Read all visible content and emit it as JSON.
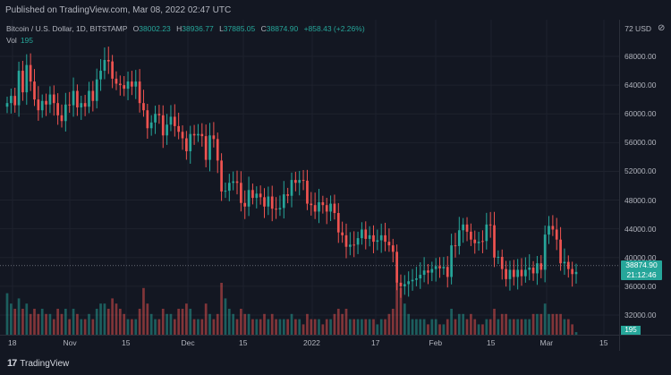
{
  "header": {
    "published": "Published on TradingView.com, Mar 08, 2022 02:47 UTC"
  },
  "legend": {
    "symbol": "Bitcoin / U.S. Dollar, 1D, BITSTAMP",
    "o_key": "O",
    "o_val": "38002.23",
    "h_key": "H",
    "h_val": "38936.77",
    "l_key": "L",
    "l_val": "37885.05",
    "c_key": "C",
    "c_val": "38874.90",
    "change": "+858.43 (+2.26%)",
    "vol_key": "Vol",
    "vol_val": "195"
  },
  "price_axis": {
    "unit_label": "72 USD",
    "ticks": [
      "68000.00",
      "64000.00",
      "60000.00",
      "56000.00",
      "52000.00",
      "48000.00",
      "44000.00",
      "40000.00",
      "36000.00",
      "32000.00"
    ],
    "current_price": "38874.90",
    "countdown": "21:12:46",
    "volume_label": "195"
  },
  "time_axis": {
    "ticks": [
      "18",
      "Nov",
      "15",
      "Dec",
      "15",
      "2022",
      "17",
      "Feb",
      "15",
      "Mar",
      "15"
    ]
  },
  "footer": {
    "logo_text": "TradingView",
    "logo_mark": "17"
  },
  "colors": {
    "up": "#26a69a",
    "down": "#ef5350",
    "background": "#131722",
    "grid": "#2a2e39"
  },
  "chart_data": {
    "type": "candlestick",
    "title": "Bitcoin / U.S. Dollar, 1D, BITSTAMP",
    "ylim": [
      30000,
      72000
    ],
    "x_ticks": [
      "18",
      "Nov",
      "15",
      "Dec",
      "15",
      "2022",
      "17",
      "Feb",
      "15",
      "Mar",
      "15"
    ],
    "candles": [
      {
        "c": 61500,
        "d": "up",
        "v": 0.8
      },
      {
        "c": 62500,
        "d": "up",
        "v": 0.6
      },
      {
        "c": 61200,
        "d": "down",
        "v": 0.5
      },
      {
        "c": 66000,
        "d": "up",
        "v": 0.7
      },
      {
        "c": 63000,
        "d": "down",
        "v": 0.5
      },
      {
        "c": 66800,
        "d": "up",
        "v": 0.6
      },
      {
        "c": 64500,
        "d": "down",
        "v": 0.4
      },
      {
        "c": 62000,
        "d": "down",
        "v": 0.5
      },
      {
        "c": 60500,
        "d": "down",
        "v": 0.4
      },
      {
        "c": 61800,
        "d": "up",
        "v": 0.5
      },
      {
        "c": 61300,
        "d": "down",
        "v": 0.4
      },
      {
        "c": 62700,
        "d": "up",
        "v": 0.4
      },
      {
        "c": 61500,
        "d": "down",
        "v": 0.3
      },
      {
        "c": 59800,
        "d": "down",
        "v": 0.5
      },
      {
        "c": 59000,
        "d": "down",
        "v": 0.4
      },
      {
        "c": 61300,
        "d": "up",
        "v": 0.5
      },
      {
        "c": 61200,
        "d": "down",
        "v": 0.3
      },
      {
        "c": 63200,
        "d": "up",
        "v": 0.5
      },
      {
        "c": 60900,
        "d": "down",
        "v": 0.4
      },
      {
        "c": 61500,
        "d": "up",
        "v": 0.3
      },
      {
        "c": 61000,
        "d": "down",
        "v": 0.3
      },
      {
        "c": 63200,
        "d": "up",
        "v": 0.4
      },
      {
        "c": 61800,
        "d": "down",
        "v": 0.3
      },
      {
        "c": 64800,
        "d": "up",
        "v": 0.5
      },
      {
        "c": 66000,
        "d": "up",
        "v": 0.6
      },
      {
        "c": 67500,
        "d": "up",
        "v": 0.6
      },
      {
        "c": 67300,
        "d": "down",
        "v": 0.5
      },
      {
        "c": 64900,
        "d": "down",
        "v": 0.7
      },
      {
        "c": 64200,
        "d": "down",
        "v": 0.6
      },
      {
        "c": 64000,
        "d": "down",
        "v": 0.5
      },
      {
        "c": 63500,
        "d": "down",
        "v": 0.4
      },
      {
        "c": 64500,
        "d": "up",
        "v": 0.3
      },
      {
        "c": 63800,
        "d": "down",
        "v": 0.3
      },
      {
        "c": 64500,
        "d": "up",
        "v": 0.3
      },
      {
        "c": 61500,
        "d": "down",
        "v": 0.5
      },
      {
        "c": 60500,
        "d": "down",
        "v": 0.9
      },
      {
        "c": 58000,
        "d": "down",
        "v": 0.6
      },
      {
        "c": 58800,
        "d": "up",
        "v": 0.4
      },
      {
        "c": 60000,
        "d": "up",
        "v": 0.3
      },
      {
        "c": 59800,
        "d": "down",
        "v": 0.3
      },
      {
        "c": 57000,
        "d": "down",
        "v": 0.5
      },
      {
        "c": 58500,
        "d": "up",
        "v": 0.4
      },
      {
        "c": 59600,
        "d": "up",
        "v": 0.4
      },
      {
        "c": 58300,
        "d": "down",
        "v": 0.3
      },
      {
        "c": 57500,
        "d": "down",
        "v": 0.5
      },
      {
        "c": 56600,
        "d": "down",
        "v": 0.5
      },
      {
        "c": 54800,
        "d": "down",
        "v": 0.6
      },
      {
        "c": 57200,
        "d": "up",
        "v": 0.5
      },
      {
        "c": 57000,
        "d": "down",
        "v": 0.3
      },
      {
        "c": 57200,
        "d": "up",
        "v": 0.3
      },
      {
        "c": 56900,
        "d": "down",
        "v": 0.3
      },
      {
        "c": 53600,
        "d": "down",
        "v": 0.6
      },
      {
        "c": 57000,
        "d": "up",
        "v": 0.4
      },
      {
        "c": 56500,
        "d": "down",
        "v": 0.3
      },
      {
        "c": 53500,
        "d": "down",
        "v": 0.4
      },
      {
        "c": 49200,
        "d": "down",
        "v": 1.0
      },
      {
        "c": 49300,
        "d": "up",
        "v": 0.7
      },
      {
        "c": 50400,
        "d": "up",
        "v": 0.5
      },
      {
        "c": 50600,
        "d": "up",
        "v": 0.4
      },
      {
        "c": 50400,
        "d": "down",
        "v": 0.3
      },
      {
        "c": 47600,
        "d": "down",
        "v": 0.5
      },
      {
        "c": 47100,
        "d": "down",
        "v": 0.4
      },
      {
        "c": 49400,
        "d": "up",
        "v": 0.4
      },
      {
        "c": 48300,
        "d": "down",
        "v": 0.3
      },
      {
        "c": 48900,
        "d": "up",
        "v": 0.3
      },
      {
        "c": 48400,
        "d": "down",
        "v": 0.3
      },
      {
        "c": 47100,
        "d": "down",
        "v": 0.4
      },
      {
        "c": 48500,
        "d": "up",
        "v": 0.3
      },
      {
        "c": 46800,
        "d": "down",
        "v": 0.4
      },
      {
        "c": 46700,
        "d": "down",
        "v": 0.3
      },
      {
        "c": 46900,
        "d": "up",
        "v": 0.3
      },
      {
        "c": 48800,
        "d": "up",
        "v": 0.3
      },
      {
        "c": 48600,
        "d": "down",
        "v": 0.3
      },
      {
        "c": 50800,
        "d": "up",
        "v": 0.4
      },
      {
        "c": 50400,
        "d": "down",
        "v": 0.3
      },
      {
        "c": 50800,
        "d": "up",
        "v": 0.3
      },
      {
        "c": 50700,
        "d": "down",
        "v": 0.2
      },
      {
        "c": 47500,
        "d": "down",
        "v": 0.4
      },
      {
        "c": 47300,
        "d": "down",
        "v": 0.3
      },
      {
        "c": 46400,
        "d": "down",
        "v": 0.3
      },
      {
        "c": 47700,
        "d": "up",
        "v": 0.3
      },
      {
        "c": 47300,
        "d": "down",
        "v": 0.2
      },
      {
        "c": 46400,
        "d": "down",
        "v": 0.3
      },
      {
        "c": 47500,
        "d": "up",
        "v": 0.3
      },
      {
        "c": 46200,
        "d": "down",
        "v": 0.4
      },
      {
        "c": 43500,
        "d": "down",
        "v": 0.5
      },
      {
        "c": 43100,
        "d": "down",
        "v": 0.4
      },
      {
        "c": 41500,
        "d": "down",
        "v": 0.5
      },
      {
        "c": 41800,
        "d": "up",
        "v": 0.3
      },
      {
        "c": 41800,
        "d": "down",
        "v": 0.3
      },
      {
        "c": 42700,
        "d": "up",
        "v": 0.3
      },
      {
        "c": 43900,
        "d": "up",
        "v": 0.3
      },
      {
        "c": 42600,
        "d": "down",
        "v": 0.3
      },
      {
        "c": 43100,
        "d": "up",
        "v": 0.3
      },
      {
        "c": 42200,
        "d": "down",
        "v": 0.3
      },
      {
        "c": 42400,
        "d": "up",
        "v": 0.2
      },
      {
        "c": 43100,
        "d": "up",
        "v": 0.3
      },
      {
        "c": 42200,
        "d": "down",
        "v": 0.3
      },
      {
        "c": 41700,
        "d": "down",
        "v": 0.4
      },
      {
        "c": 40800,
        "d": "down",
        "v": 0.5
      },
      {
        "c": 36500,
        "d": "down",
        "v": 1.0
      },
      {
        "c": 36000,
        "d": "down",
        "v": 0.9
      },
      {
        "c": 36300,
        "d": "up",
        "v": 0.6
      },
      {
        "c": 36700,
        "d": "up",
        "v": 0.4
      },
      {
        "c": 36900,
        "d": "up",
        "v": 0.3
      },
      {
        "c": 37100,
        "d": "up",
        "v": 0.3
      },
      {
        "c": 37600,
        "d": "up",
        "v": 0.3
      },
      {
        "c": 38200,
        "d": "up",
        "v": 0.3
      },
      {
        "c": 37900,
        "d": "down",
        "v": 0.2
      },
      {
        "c": 38400,
        "d": "up",
        "v": 0.3
      },
      {
        "c": 38800,
        "d": "up",
        "v": 0.3
      },
      {
        "c": 38500,
        "d": "down",
        "v": 0.2
      },
      {
        "c": 38700,
        "d": "up",
        "v": 0.2
      },
      {
        "c": 37300,
        "d": "down",
        "v": 0.3
      },
      {
        "c": 41700,
        "d": "up",
        "v": 0.5
      },
      {
        "c": 41600,
        "d": "down",
        "v": 0.3
      },
      {
        "c": 43800,
        "d": "up",
        "v": 0.4
      },
      {
        "c": 44600,
        "d": "up",
        "v": 0.4
      },
      {
        "c": 43600,
        "d": "down",
        "v": 0.3
      },
      {
        "c": 42500,
        "d": "down",
        "v": 0.4
      },
      {
        "c": 42000,
        "d": "down",
        "v": 0.3
      },
      {
        "c": 42200,
        "d": "up",
        "v": 0.2
      },
      {
        "c": 42300,
        "d": "down",
        "v": 0.2
      },
      {
        "c": 44600,
        "d": "up",
        "v": 0.3
      },
      {
        "c": 44500,
        "d": "down",
        "v": 0.3
      },
      {
        "c": 40000,
        "d": "down",
        "v": 0.5
      },
      {
        "c": 40100,
        "d": "up",
        "v": 0.3
      },
      {
        "c": 38400,
        "d": "down",
        "v": 0.4
      },
      {
        "c": 37000,
        "d": "down",
        "v": 0.4
      },
      {
        "c": 38300,
        "d": "up",
        "v": 0.3
      },
      {
        "c": 37300,
        "d": "down",
        "v": 0.3
      },
      {
        "c": 38300,
        "d": "up",
        "v": 0.3
      },
      {
        "c": 37400,
        "d": "down",
        "v": 0.3
      },
      {
        "c": 38300,
        "d": "up",
        "v": 0.3
      },
      {
        "c": 38600,
        "d": "up",
        "v": 0.3
      },
      {
        "c": 37800,
        "d": "down",
        "v": 0.4
      },
      {
        "c": 39200,
        "d": "up",
        "v": 0.4
      },
      {
        "c": 38300,
        "d": "down",
        "v": 0.4
      },
      {
        "c": 43200,
        "d": "up",
        "v": 0.6
      },
      {
        "c": 44400,
        "d": "up",
        "v": 0.4
      },
      {
        "c": 43900,
        "d": "down",
        "v": 0.4
      },
      {
        "c": 42500,
        "d": "down",
        "v": 0.4
      },
      {
        "c": 39200,
        "d": "down",
        "v": 0.4
      },
      {
        "c": 39400,
        "d": "up",
        "v": 0.3
      },
      {
        "c": 38400,
        "d": "down",
        "v": 0.3
      },
      {
        "c": 37700,
        "d": "down",
        "v": 0.2
      },
      {
        "c": 38000,
        "d": "up",
        "v": 0.05
      }
    ]
  }
}
